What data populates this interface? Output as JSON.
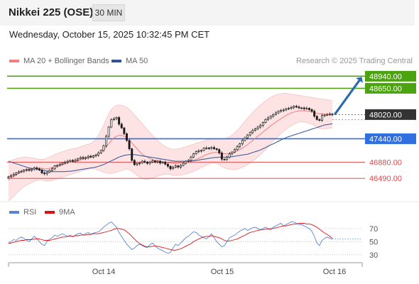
{
  "header": {
    "title": "Nikkei 225 (OSE)",
    "timeframe": "30 MIN",
    "datetime": "Wednesday, October 15, 2025 10:32:45 PM CET"
  },
  "price_legend": [
    {
      "label": "MA 20 + Bollinger Bands",
      "color": "#f08080"
    },
    {
      "label": "MA 50",
      "color": "#2f5597"
    }
  ],
  "credit": "Research © 2025 Trading Central",
  "indicator_legend": [
    {
      "label": "RSI",
      "color": "#5b84d6"
    },
    {
      "label": "9MA",
      "color": "#dd1111"
    }
  ],
  "colors": {
    "resistance": "#4aa30f",
    "current": "#333333",
    "pivot": "#2f6fe0",
    "support": "#e34a4a",
    "arrow": "#2d6bb0"
  },
  "chart_data": [
    {
      "type": "candlestick",
      "title": "Nikkei 225 (OSE)",
      "x_ticks": [
        "Oct 14",
        "Oct 15",
        "Oct 16"
      ],
      "ylim": [
        46000,
        49150
      ],
      "levels": [
        {
          "label": "48940.00",
          "value": 48940,
          "kind": "resistance"
        },
        {
          "label": "48650.00",
          "value": 48650,
          "kind": "resistance"
        },
        {
          "label": "48020.00",
          "value": 48020,
          "kind": "current"
        },
        {
          "label": "47440.00",
          "value": 47440,
          "kind": "pivot"
        },
        {
          "label": "46880.00",
          "value": 46880,
          "kind": "support"
        },
        {
          "label": "46490.00",
          "value": 46490,
          "kind": "support"
        }
      ],
      "close": [
        46530,
        46560,
        46590,
        46620,
        46650,
        46660,
        46690,
        46700,
        46680,
        46710,
        46740,
        46720,
        46690,
        46620,
        46600,
        46640,
        46680,
        46720,
        46790,
        46800,
        46830,
        46860,
        46880,
        46900,
        46920,
        46900,
        46930,
        46960,
        46990,
        46970,
        46990,
        47020,
        47000,
        47030,
        47050,
        47100,
        47160,
        47270,
        47500,
        47720,
        47900,
        47920,
        47950,
        47790,
        47700,
        47560,
        47400,
        47200,
        46920,
        46820,
        46840,
        46860,
        46900,
        46880,
        46850,
        46880,
        46910,
        46880,
        46900,
        46860,
        46880,
        46830,
        46780,
        46720,
        46760,
        46790,
        46760,
        46800,
        46850,
        46900,
        46920,
        47000,
        47080,
        47130,
        47150,
        47160,
        47210,
        47220,
        47210,
        47230,
        47200,
        47180,
        47100,
        46950,
        46940,
        47000,
        47080,
        47120,
        47180,
        47250,
        47320,
        47400,
        47460,
        47530,
        47590,
        47640,
        47680,
        47720,
        47760,
        47830,
        47900,
        47940,
        47980,
        48020,
        48060,
        48100,
        48120,
        48130,
        48160,
        48170,
        48190,
        48220,
        48200,
        48180,
        48180,
        48160,
        48170,
        48140,
        48100,
        47980,
        47900,
        47880,
        48000,
        48010,
        48020,
        48030,
        48020
      ],
      "ma20": [
        46450,
        46500,
        46540,
        46580,
        46610,
        46650,
        46680,
        46700,
        46710,
        46720,
        46730,
        46740,
        46740,
        46730,
        46720,
        46720,
        46730,
        46750,
        46770,
        46780,
        46800,
        46820,
        46840,
        46860,
        46880,
        46890,
        46900,
        46920,
        46930,
        46950,
        46960,
        46980,
        47000,
        47020,
        47050,
        47080,
        47120,
        47170,
        47240,
        47320,
        47400,
        47460,
        47500,
        47520,
        47520,
        47500,
        47470,
        47410,
        47340,
        47270,
        47200,
        47130,
        47070,
        47030,
        47000,
        46970,
        46940,
        46920,
        46910,
        46900,
        46890,
        46880,
        46870,
        46860,
        46850,
        46850,
        46850,
        46860,
        46870,
        46880,
        46890,
        46900,
        46920,
        46950,
        46970,
        47000,
        47030,
        47060,
        47080,
        47100,
        47110,
        47110,
        47100,
        47090,
        47080,
        47080,
        47090,
        47100,
        47120,
        47150,
        47180,
        47220,
        47260,
        47300,
        47350,
        47400,
        47450,
        47500,
        47550,
        47600,
        47650,
        47700,
        47750,
        47800,
        47840,
        47880,
        47920,
        47960,
        48000,
        48030,
        48060,
        48080,
        48100,
        48110,
        48110,
        48110,
        48110,
        48100,
        48090,
        48070,
        48050,
        48040,
        48040,
        48030,
        48030,
        48030,
        48030
      ],
      "bb_upper": [
        46900,
        46920,
        46940,
        46960,
        46980,
        46990,
        47000,
        47000,
        46990,
        46980,
        46970,
        46960,
        46950,
        46940,
        46950,
        46970,
        47000,
        47030,
        47060,
        47090,
        47110,
        47130,
        47150,
        47170,
        47190,
        47200,
        47210,
        47230,
        47250,
        47270,
        47290,
        47310,
        47330,
        47370,
        47430,
        47520,
        47630,
        47760,
        47900,
        48030,
        48140,
        48200,
        48240,
        48250,
        48240,
        48220,
        48190,
        48140,
        48080,
        48010,
        47940,
        47870,
        47800,
        47730,
        47660,
        47590,
        47520,
        47460,
        47400,
        47340,
        47290,
        47250,
        47220,
        47200,
        47190,
        47190,
        47200,
        47210,
        47230,
        47250,
        47270,
        47290,
        47310,
        47330,
        47350,
        47370,
        47390,
        47410,
        47420,
        47430,
        47430,
        47430,
        47430,
        47430,
        47440,
        47460,
        47490,
        47530,
        47580,
        47640,
        47710,
        47780,
        47860,
        47930,
        48000,
        48070,
        48130,
        48190,
        48250,
        48300,
        48350,
        48390,
        48430,
        48460,
        48490,
        48510,
        48520,
        48530,
        48530,
        48520,
        48510,
        48500,
        48490,
        48480,
        48470,
        48460,
        48450,
        48440,
        48430,
        48420,
        48410,
        48400,
        48390,
        48380,
        48370,
        48360,
        48350
      ],
      "bb_lower": [
        45950,
        46000,
        46060,
        46120,
        46180,
        46240,
        46290,
        46330,
        46360,
        46390,
        46420,
        46440,
        46450,
        46450,
        46440,
        46430,
        46430,
        46440,
        46460,
        46480,
        46500,
        46520,
        46540,
        46560,
        46580,
        46600,
        46620,
        46640,
        46660,
        46680,
        46700,
        46710,
        46720,
        46720,
        46710,
        46690,
        46660,
        46640,
        46620,
        46610,
        46610,
        46620,
        46640,
        46660,
        46680,
        46700,
        46720,
        46700,
        46660,
        46610,
        46560,
        46520,
        46490,
        46470,
        46470,
        46480,
        46500,
        46520,
        46540,
        46560,
        46580,
        46590,
        46590,
        46580,
        46560,
        46560,
        46560,
        46570,
        46580,
        46600,
        46620,
        46640,
        46660,
        46690,
        46720,
        46750,
        46780,
        46810,
        46830,
        46850,
        46860,
        46850,
        46820,
        46770,
        46740,
        46720,
        46710,
        46700,
        46700,
        46710,
        46730,
        46760,
        46790,
        46820,
        46860,
        46900,
        46950,
        47000,
        47060,
        47120,
        47180,
        47250,
        47320,
        47390,
        47450,
        47510,
        47570,
        47620,
        47670,
        47710,
        47750,
        47790,
        47820,
        47840,
        47850,
        47840,
        47830,
        47810,
        47790,
        47760,
        47720,
        47690,
        47680,
        47680,
        47690,
        47700,
        47700
      ],
      "ma50": [
        46900,
        46880,
        46860,
        46840,
        46820,
        46800,
        46780,
        46760,
        46740,
        46730,
        46720,
        46710,
        46700,
        46690,
        46680,
        46670,
        46660,
        46650,
        46650,
        46650,
        46650,
        46650,
        46650,
        46660,
        46660,
        46670,
        46680,
        46690,
        46700,
        46710,
        46720,
        46730,
        46740,
        46750,
        46760,
        46780,
        46800,
        46820,
        46850,
        46880,
        46910,
        46940,
        46970,
        47000,
        47020,
        47040,
        47050,
        47060,
        47060,
        47060,
        47050,
        47040,
        47030,
        47020,
        47010,
        47000,
        46990,
        46980,
        46970,
        46960,
        46950,
        46940,
        46930,
        46920,
        46910,
        46900,
        46900,
        46900,
        46900,
        46900,
        46900,
        46910,
        46910,
        46920,
        46930,
        46940,
        46950,
        46960,
        46970,
        46980,
        46990,
        46990,
        47000,
        47000,
        47000,
        47000,
        47010,
        47010,
        47020,
        47030,
        47040,
        47050,
        47060,
        47070,
        47090,
        47110,
        47130,
        47150,
        47170,
        47200,
        47230,
        47260,
        47290,
        47320,
        47350,
        47380,
        47410,
        47440,
        47470,
        47490,
        47510,
        47530,
        47550,
        47570,
        47590,
        47610,
        47630,
        47650,
        47670,
        47690,
        47710,
        47730,
        47750,
        47770,
        47780,
        47790,
        47800
      ],
      "projection": {
        "from": 48020,
        "to": 48940
      }
    },
    {
      "type": "line",
      "title": "RSI",
      "yticks": [
        70,
        50,
        30
      ],
      "ylim": [
        20,
        85
      ],
      "series": [
        {
          "name": "RSI",
          "values": [
            48,
            50,
            53,
            52,
            55,
            57,
            55,
            52,
            50,
            54,
            58,
            55,
            50,
            46,
            44,
            50,
            54,
            56,
            60,
            58,
            60,
            62,
            60,
            58,
            60,
            57,
            60,
            62,
            63,
            60,
            62,
            64,
            61,
            63,
            64,
            65,
            68,
            72,
            75,
            78,
            80,
            76,
            72,
            64,
            58,
            52,
            46,
            42,
            38,
            40,
            44,
            46,
            44,
            42,
            41,
            45,
            48,
            44,
            40,
            38,
            36,
            34,
            32,
            34,
            40,
            46,
            44,
            48,
            52,
            56,
            58,
            62,
            65,
            64,
            60,
            58,
            56,
            54,
            58,
            62,
            56,
            50,
            46,
            42,
            44,
            50,
            56,
            58,
            60,
            63,
            66,
            68,
            70,
            67,
            69,
            71,
            72,
            70,
            68,
            70,
            72,
            70,
            68,
            72,
            74,
            76,
            78,
            74,
            76,
            78,
            80,
            80,
            78,
            76,
            76,
            74,
            72,
            70,
            66,
            58,
            48,
            44,
            52,
            55,
            57,
            55,
            54
          ]
        },
        {
          "name": "9MA",
          "values": [
            47,
            48,
            49,
            50,
            51,
            52,
            52,
            53,
            53,
            53,
            54,
            54,
            54,
            53,
            52,
            52,
            52,
            53,
            54,
            55,
            56,
            57,
            57,
            58,
            58,
            58,
            59,
            59,
            60,
            60,
            60,
            61,
            61,
            62,
            62,
            62,
            63,
            64,
            65,
            66,
            67,
            69,
            70,
            70,
            69,
            68,
            65,
            62,
            58,
            54,
            50,
            47,
            45,
            43,
            42,
            42,
            43,
            43,
            43,
            42,
            41,
            40,
            39,
            38,
            37,
            37,
            38,
            39,
            41,
            43,
            45,
            47,
            50,
            52,
            54,
            56,
            57,
            58,
            58,
            59,
            58,
            57,
            56,
            54,
            52,
            51,
            51,
            52,
            53,
            54,
            56,
            58,
            60,
            62,
            64,
            65,
            66,
            67,
            68,
            68,
            69,
            69,
            70,
            70,
            71,
            72,
            73,
            74,
            74,
            75,
            76,
            77,
            77,
            78,
            78,
            78,
            77,
            77,
            76,
            74,
            72,
            69,
            66,
            63,
            61,
            58,
            55
          ]
        }
      ]
    }
  ]
}
